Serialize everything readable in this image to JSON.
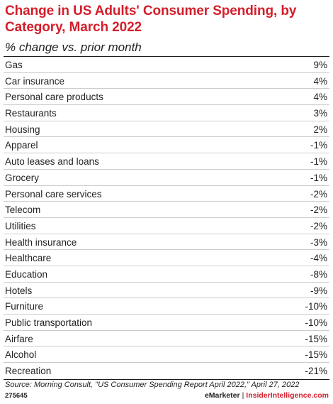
{
  "chart_data": {
    "type": "table",
    "title": "Change in US Adults' Consumer Spending, by Category, March 2022",
    "subtitle": "% change vs. prior month",
    "rows": [
      {
        "category": "Gas",
        "value": "9%"
      },
      {
        "category": "Car insurance",
        "value": "4%"
      },
      {
        "category": "Personal care products",
        "value": "4%"
      },
      {
        "category": "Restaurants",
        "value": "3%"
      },
      {
        "category": "Housing",
        "value": "2%"
      },
      {
        "category": "Apparel",
        "value": "-1%"
      },
      {
        "category": "Auto leases and loans",
        "value": "-1%"
      },
      {
        "category": "Grocery",
        "value": "-1%"
      },
      {
        "category": "Personal care services",
        "value": "-2%"
      },
      {
        "category": "Telecom",
        "value": "-2%"
      },
      {
        "category": "Utilities",
        "value": "-2%"
      },
      {
        "category": "Health insurance",
        "value": "-3%"
      },
      {
        "category": "Healthcare",
        "value": "-4%"
      },
      {
        "category": "Education",
        "value": "-8%"
      },
      {
        "category": "Hotels",
        "value": "-9%"
      },
      {
        "category": "Furniture",
        "value": "-10%"
      },
      {
        "category": "Public transportation",
        "value": "-10%"
      },
      {
        "category": "Airfare",
        "value": "-15%"
      },
      {
        "category": "Alcohol",
        "value": "-15%"
      },
      {
        "category": "Recreation",
        "value": "-21%"
      }
    ]
  },
  "footer": {
    "source": "Source: Morning Consult, \"US Consumer Spending Report April 2022,\" April 27, 2022",
    "chart_id": "275645",
    "brand_emarketer": "eMarketer",
    "brand_separator": "|",
    "brand_insider": "InsiderIntelligence.com"
  },
  "colors": {
    "title": "#d41e2b",
    "text": "#222222",
    "rule": "#1a1a1a",
    "row_divider": "#cccccc"
  }
}
